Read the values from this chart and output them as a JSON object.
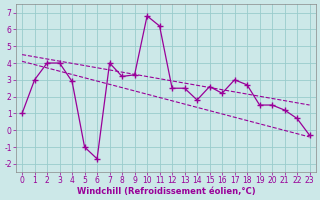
{
  "xlabel": "Windchill (Refroidissement éolien,°C)",
  "background_color": "#cce8e8",
  "grid_color": "#99cccc",
  "line_color": "#990099",
  "x_data": [
    0,
    1,
    2,
    3,
    4,
    5,
    6,
    7,
    8,
    9,
    10,
    11,
    12,
    13,
    14,
    15,
    16,
    17,
    18,
    19,
    20,
    21,
    22,
    23
  ],
  "y_data": [
    1,
    3,
    4,
    4,
    2.9,
    -1,
    -1.7,
    4.0,
    3.2,
    3.3,
    6.8,
    6.2,
    2.5,
    2.5,
    1.8,
    2.6,
    2.2,
    3.0,
    2.7,
    1.5,
    1.5,
    1.2,
    0.7,
    -0.3
  ],
  "trend1_x": [
    0,
    23
  ],
  "trend1_y": [
    4.5,
    1.5
  ],
  "trend2_x": [
    0,
    23
  ],
  "trend2_y": [
    4.1,
    -0.4
  ],
  "ylim": [
    -2.5,
    7.5
  ],
  "xlim": [
    -0.5,
    23.5
  ],
  "yticks": [
    -2,
    -1,
    0,
    1,
    2,
    3,
    4,
    5,
    6,
    7
  ],
  "xticks": [
    0,
    1,
    2,
    3,
    4,
    5,
    6,
    7,
    8,
    9,
    10,
    11,
    12,
    13,
    14,
    15,
    16,
    17,
    18,
    19,
    20,
    21,
    22,
    23
  ],
  "tick_fontsize": 5.5,
  "xlabel_fontsize": 6.0
}
